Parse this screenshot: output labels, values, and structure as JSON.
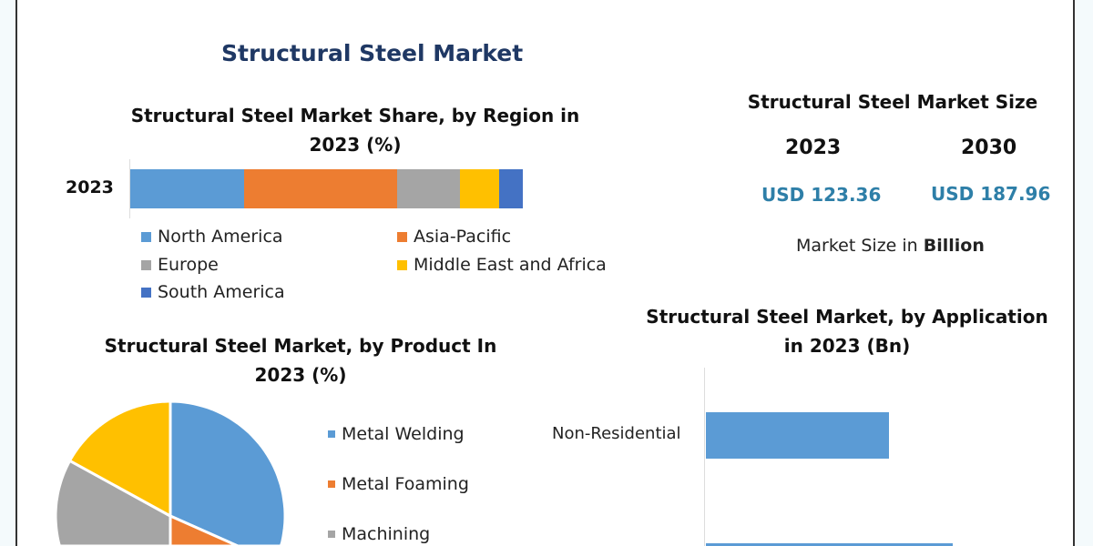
{
  "page": {
    "title": "Structural Steel Market"
  },
  "market_size": {
    "title": "Structural Steel Market Size",
    "years": [
      "2023",
      "2030"
    ],
    "values": [
      "USD 123.36",
      "USD 187.96"
    ],
    "note_prefix": "Market Size in",
    "note_unit": "Billion",
    "value_color": "#2e7fa8"
  },
  "chart_data": [
    {
      "type": "bar",
      "orientation": "horizontal-stacked",
      "title_line1": "Structural Steel Market Share, by Region in",
      "title_line2": "2023 (%)",
      "categories": [
        "2023"
      ],
      "series": [
        {
          "name": "North America",
          "values": [
            29
          ],
          "color": "#5b9bd5"
        },
        {
          "name": "Asia-Pacific",
          "values": [
            39
          ],
          "color": "#ed7d31"
        },
        {
          "name": "Europe",
          "values": [
            16
          ],
          "color": "#a5a5a5"
        },
        {
          "name": "Middle East and Africa",
          "values": [
            10
          ],
          "color": "#ffc000"
        },
        {
          "name": "South America",
          "values": [
            6
          ],
          "color": "#4472c4"
        }
      ],
      "legend": "bottom"
    },
    {
      "type": "pie",
      "title_line1": "Structural Steel Market, by Product In",
      "title_line2": "2023 (%)",
      "slices": [
        {
          "name": "Metal Welding",
          "value": 40,
          "color": "#5b9bd5"
        },
        {
          "name": "Metal Foaming",
          "value": 10,
          "color": "#ed7d31"
        },
        {
          "name": "Machining",
          "value": 33,
          "color": "#a5a5a5"
        },
        {
          "name": "",
          "value": 17,
          "color": "#ffc000"
        }
      ],
      "legend": "right"
    },
    {
      "type": "bar",
      "orientation": "horizontal",
      "title_line1": "Structural Steel Market, by Application",
      "title_line2": "in 2023 (Bn)",
      "categories": [
        "Non-Residential",
        ""
      ],
      "values": [
        74,
        100
      ],
      "colors": [
        "#5b9bd5",
        "#5b9bd5"
      ]
    }
  ]
}
